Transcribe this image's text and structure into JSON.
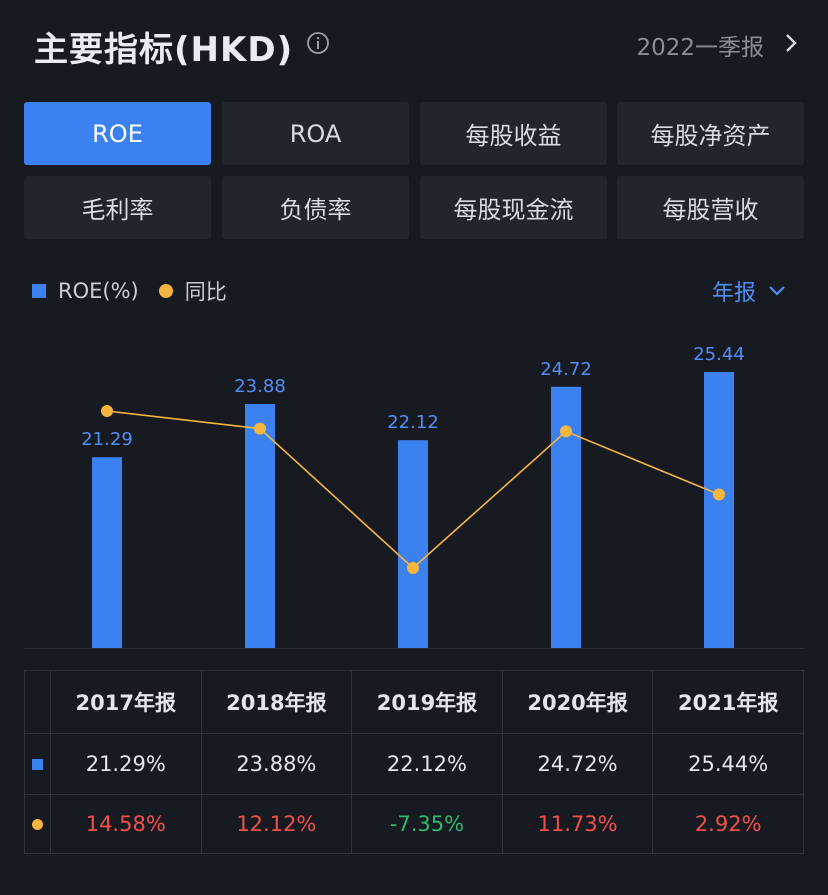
{
  "header": {
    "title": "主要指标(HKD)",
    "period": "2022一季报"
  },
  "tabs": [
    {
      "label": "ROE",
      "active": true
    },
    {
      "label": "ROA"
    },
    {
      "label": "每股收益"
    },
    {
      "label": "每股净资产"
    },
    {
      "label": "毛利率"
    },
    {
      "label": "负债率"
    },
    {
      "label": "每股现金流"
    },
    {
      "label": "每股营收"
    }
  ],
  "legend": {
    "bar_label": "ROE(%)",
    "line_label": "同比"
  },
  "frequency": "年报",
  "colors": {
    "bar": "#3b82f0",
    "line": "#f5b53f",
    "positive": "#f0504a",
    "negative": "#2fb96b"
  },
  "chart_data": {
    "type": "bar",
    "categories": [
      "2017年报",
      "2018年报",
      "2019年报",
      "2020年报",
      "2021年报"
    ],
    "series": [
      {
        "name": "ROE(%)",
        "type": "bar",
        "values": [
          21.29,
          23.88,
          22.12,
          24.72,
          25.44
        ]
      },
      {
        "name": "同比",
        "type": "line",
        "values": [
          14.58,
          12.12,
          -7.35,
          11.73,
          2.92
        ]
      }
    ]
  },
  "table": {
    "headers": [
      "2017年报",
      "2018年报",
      "2019年报",
      "2020年报",
      "2021年报"
    ],
    "roe": [
      "21.29%",
      "23.88%",
      "22.12%",
      "24.72%",
      "25.44%"
    ],
    "yoy": [
      "14.58%",
      "12.12%",
      "-7.35%",
      "11.73%",
      "2.92%"
    ]
  }
}
